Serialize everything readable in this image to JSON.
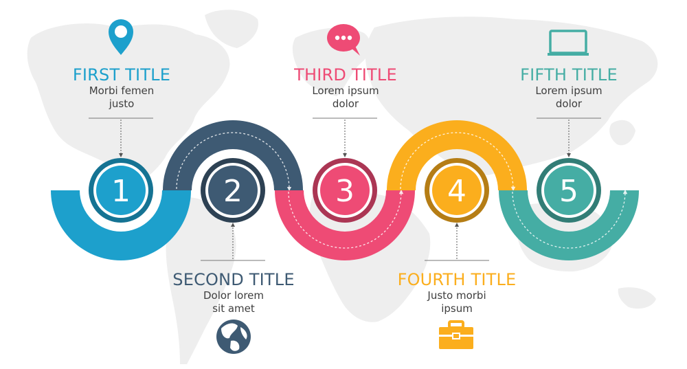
{
  "colors": {
    "step1": "#1da0cc",
    "step2": "#3e5a73",
    "step3": "#ee4b75",
    "step4": "#fbae1d",
    "step5": "#45ada4",
    "map": "#eeeeee",
    "text": "#3e3e3e"
  },
  "steps": [
    {
      "number": "1",
      "title": "FIRST TITLE",
      "line1": "Morbi femen",
      "line2": "justo",
      "icon": "location-pin-icon",
      "position": "top"
    },
    {
      "number": "2",
      "title": "SECOND TITLE",
      "line1": "Dolor lorem",
      "line2": "sit amet",
      "icon": "globe-icon",
      "position": "bottom"
    },
    {
      "number": "3",
      "title": "THIRD TITLE",
      "line1": "Lorem ipsum",
      "line2": "dolor",
      "icon": "speech-bubble-icon",
      "position": "top"
    },
    {
      "number": "4",
      "title": "FOURTH TITLE",
      "line1": "Justo morbi",
      "line2": "ipsum",
      "icon": "briefcase-icon",
      "position": "bottom"
    },
    {
      "number": "5",
      "title": "FIFTH TITLE",
      "line1": "Lorem ipsum",
      "line2": "dolor",
      "icon": "monitor-icon",
      "position": "top"
    }
  ]
}
